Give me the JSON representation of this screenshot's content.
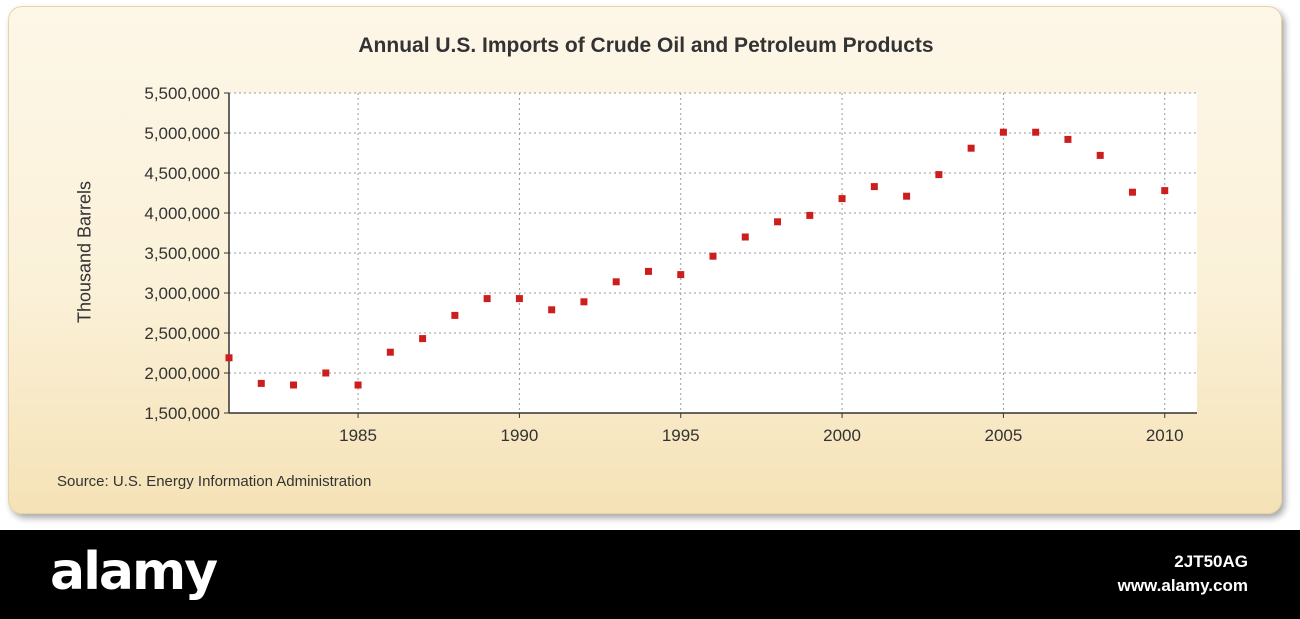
{
  "chart_data": {
    "type": "scatter",
    "title": "Annual U.S. Imports of Crude Oil and Petroleum Products",
    "ylabel": "Thousand Barrels",
    "xlabel": "",
    "xlim": [
      1981,
      2011
    ],
    "ylim": [
      1500000,
      5500000
    ],
    "x_ticks": [
      1985,
      1990,
      1995,
      2000,
      2005,
      2010
    ],
    "x_tick_labels": [
      "1985",
      "1990",
      "1995",
      "2000",
      "2005",
      "2010"
    ],
    "y_ticks": [
      1500000,
      2000000,
      2500000,
      3000000,
      3500000,
      4000000,
      4500000,
      5000000,
      5500000
    ],
    "y_tick_labels": [
      "1,500,000",
      "2,000,000",
      "2,500,000",
      "3,000,000",
      "3,500,000",
      "4,000,000",
      "4,500,000",
      "5,000,000",
      "5,500,000"
    ],
    "grid": true,
    "x": [
      1981,
      1982,
      1983,
      1984,
      1985,
      1986,
      1987,
      1988,
      1989,
      1990,
      1991,
      1992,
      1993,
      1994,
      1995,
      1996,
      1997,
      1998,
      1999,
      2000,
      2001,
      2002,
      2003,
      2004,
      2005,
      2006,
      2007,
      2008,
      2009,
      2010
    ],
    "y": [
      2190000,
      1870000,
      1850000,
      2000000,
      1850000,
      2260000,
      2430000,
      2720000,
      2930000,
      2930000,
      2790000,
      2890000,
      3140000,
      3270000,
      3230000,
      3460000,
      3700000,
      3890000,
      3970000,
      4180000,
      4330000,
      4210000,
      4480000,
      4810000,
      5010000,
      5010000,
      4920000,
      4720000,
      4260000,
      4280000
    ],
    "marker_color": "#cc1e1e"
  },
  "source": "Source: U.S. Energy Information Administration",
  "footer": {
    "brand": "alamy",
    "image_id": "2JT50AG",
    "site": "www.alamy.com"
  }
}
